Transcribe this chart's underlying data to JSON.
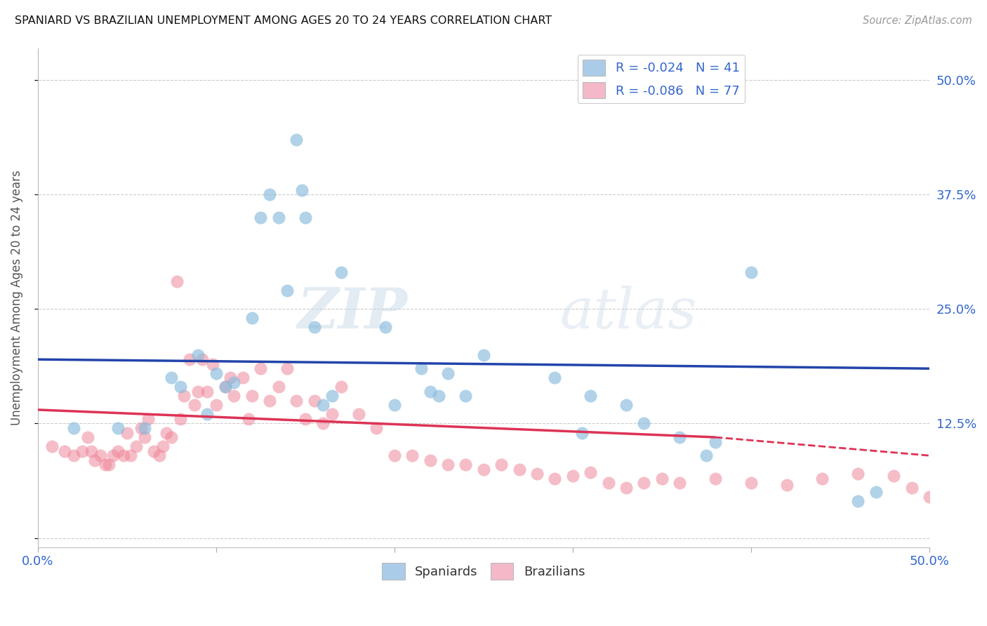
{
  "title": "SPANIARD VS BRAZILIAN UNEMPLOYMENT AMONG AGES 20 TO 24 YEARS CORRELATION CHART",
  "source": "Source: ZipAtlas.com",
  "ylabel": "Unemployment Among Ages 20 to 24 years",
  "xlim": [
    0.0,
    0.5
  ],
  "ylim": [
    -0.01,
    0.535
  ],
  "xticks": [
    0.0,
    0.1,
    0.2,
    0.3,
    0.4,
    0.5
  ],
  "xticklabels": [
    "0.0%",
    "",
    "",
    "",
    "",
    "50.0%"
  ],
  "ytick_positions": [
    0.0,
    0.125,
    0.25,
    0.375,
    0.5
  ],
  "ytick_labels_right": [
    "",
    "12.5%",
    "25.0%",
    "37.5%",
    "50.0%"
  ],
  "background_color": "#ffffff",
  "grid_color": "#cccccc",
  "watermark_zip": "ZIP",
  "watermark_atlas": "atlas",
  "legend_spaniards_label": "R = -0.024   N = 41",
  "legend_brazilians_label": "R = -0.086   N = 77",
  "legend_spaniards_color": "#aacce8",
  "legend_brazilians_color": "#f4b8c8",
  "spaniards_color": "#88bbdd",
  "brazilians_color": "#ee8899",
  "trend_spaniards_color": "#2244aa",
  "trend_brazilians_color": "#dd3355",
  "spaniards_x": [
    0.02,
    0.045,
    0.06,
    0.075,
    0.08,
    0.09,
    0.095,
    0.1,
    0.105,
    0.11,
    0.12,
    0.125,
    0.13,
    0.135,
    0.14,
    0.145,
    0.148,
    0.15,
    0.155,
    0.16,
    0.165,
    0.17,
    0.195,
    0.2,
    0.215,
    0.22,
    0.225,
    0.23,
    0.24,
    0.25,
    0.29,
    0.305,
    0.31,
    0.33,
    0.34,
    0.36,
    0.375,
    0.38,
    0.4,
    0.46,
    0.47
  ],
  "spaniards_y": [
    0.12,
    0.12,
    0.12,
    0.175,
    0.165,
    0.2,
    0.135,
    0.18,
    0.165,
    0.17,
    0.24,
    0.35,
    0.375,
    0.35,
    0.27,
    0.435,
    0.38,
    0.35,
    0.23,
    0.145,
    0.155,
    0.29,
    0.23,
    0.145,
    0.185,
    0.16,
    0.155,
    0.18,
    0.155,
    0.2,
    0.175,
    0.115,
    0.155,
    0.145,
    0.125,
    0.11,
    0.09,
    0.105,
    0.29,
    0.04,
    0.05
  ],
  "brazilians_x": [
    0.008,
    0.015,
    0.02,
    0.025,
    0.028,
    0.03,
    0.032,
    0.035,
    0.038,
    0.04,
    0.042,
    0.045,
    0.048,
    0.05,
    0.052,
    0.055,
    0.058,
    0.06,
    0.062,
    0.065,
    0.068,
    0.07,
    0.072,
    0.075,
    0.078,
    0.08,
    0.082,
    0.085,
    0.088,
    0.09,
    0.092,
    0.095,
    0.098,
    0.1,
    0.105,
    0.108,
    0.11,
    0.115,
    0.118,
    0.12,
    0.125,
    0.13,
    0.135,
    0.14,
    0.145,
    0.15,
    0.155,
    0.16,
    0.165,
    0.17,
    0.18,
    0.19,
    0.2,
    0.21,
    0.22,
    0.23,
    0.24,
    0.25,
    0.26,
    0.27,
    0.28,
    0.29,
    0.3,
    0.31,
    0.32,
    0.33,
    0.34,
    0.35,
    0.36,
    0.38,
    0.4,
    0.42,
    0.44,
    0.46,
    0.48,
    0.49,
    0.5
  ],
  "brazilians_y": [
    0.1,
    0.095,
    0.09,
    0.095,
    0.11,
    0.095,
    0.085,
    0.09,
    0.08,
    0.08,
    0.09,
    0.095,
    0.09,
    0.115,
    0.09,
    0.1,
    0.12,
    0.11,
    0.13,
    0.095,
    0.09,
    0.1,
    0.115,
    0.11,
    0.28,
    0.13,
    0.155,
    0.195,
    0.145,
    0.16,
    0.195,
    0.16,
    0.19,
    0.145,
    0.165,
    0.175,
    0.155,
    0.175,
    0.13,
    0.155,
    0.185,
    0.15,
    0.165,
    0.185,
    0.15,
    0.13,
    0.15,
    0.125,
    0.135,
    0.165,
    0.135,
    0.12,
    0.09,
    0.09,
    0.085,
    0.08,
    0.08,
    0.075,
    0.08,
    0.075,
    0.07,
    0.065,
    0.068,
    0.072,
    0.06,
    0.055,
    0.06,
    0.065,
    0.06,
    0.065,
    0.06,
    0.058,
    0.065,
    0.07,
    0.068,
    0.055,
    0.045
  ],
  "trend_sp_x0": 0.0,
  "trend_sp_x1": 0.5,
  "trend_sp_y0": 0.195,
  "trend_sp_y1": 0.185,
  "trend_br_solid_x0": 0.0,
  "trend_br_solid_x1": 0.38,
  "trend_br_y0": 0.14,
  "trend_br_y1": 0.11,
  "trend_br_dash_x0": 0.38,
  "trend_br_dash_x1": 0.5,
  "trend_br_dash_y0": 0.11,
  "trend_br_dash_y1": 0.09
}
